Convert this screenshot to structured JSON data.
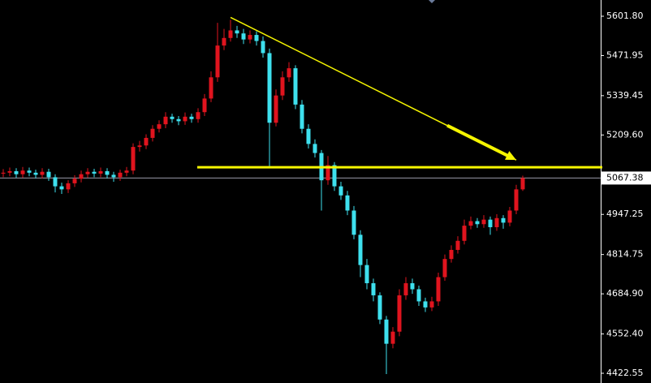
{
  "chart_data": {
    "type": "candlestick",
    "up_color": "#e0141e",
    "down_color": "#3ee0ee",
    "annotation_color": "#f5f500",
    "price_line_color": "#9a9aa8",
    "ylim": [
      4390.4,
      5655.4
    ],
    "yticks": [
      {
        "value": 5601.8,
        "label": "5601.80"
      },
      {
        "value": 5471.95,
        "label": "5471.95"
      },
      {
        "value": 5339.45,
        "label": "5339.45"
      },
      {
        "value": 5209.6,
        "label": "5209.60"
      },
      {
        "value": 4947.25,
        "label": "4947.25"
      },
      {
        "value": 4814.75,
        "label": "4814.75"
      },
      {
        "value": 4684.9,
        "label": "4684.90"
      },
      {
        "value": 4552.4,
        "label": "4552.40"
      },
      {
        "value": 4422.55,
        "label": "4422.55"
      }
    ],
    "current_price": 5067.38,
    "horizontal_line": 5103,
    "trendline": {
      "from": {
        "index": 35,
        "price": 5598
      },
      "to": {
        "index": 79,
        "price": 5127
      }
    },
    "open": [
      5082,
      5085,
      5090,
      5080,
      5092,
      5085,
      5078,
      5088,
      5070,
      5040,
      5030,
      5050,
      5065,
      5080,
      5088,
      5082,
      5090,
      5078,
      5070,
      5085,
      5092,
      5170,
      5175,
      5200,
      5230,
      5245,
      5270,
      5262,
      5255,
      5270,
      5262,
      5285,
      5330,
      5400,
      5505,
      5530,
      5555,
      5545,
      5525,
      5540,
      5520,
      5480,
      5250,
      5340,
      5400,
      5430,
      5310,
      5230,
      5180,
      5150,
      5060,
      5110,
      5040,
      5010,
      4960,
      4880,
      4780,
      4720,
      4680,
      4600,
      4520,
      4560,
      4680,
      4720,
      4700,
      4660,
      4640,
      4660,
      4740,
      4800,
      4830,
      4860,
      4910,
      4925,
      4915,
      4930,
      4905,
      4935,
      4920,
      4960,
      5030
    ],
    "high": [
      5097,
      5102,
      5100,
      5104,
      5102,
      5095,
      5100,
      5098,
      5080,
      5052,
      5060,
      5077,
      5092,
      5100,
      5098,
      5102,
      5100,
      5088,
      5095,
      5104,
      5182,
      5190,
      5212,
      5242,
      5258,
      5285,
      5280,
      5272,
      5284,
      5280,
      5298,
      5345,
      5420,
      5580,
      5560,
      5590,
      5570,
      5560,
      5555,
      5552,
      5535,
      5495,
      5360,
      5420,
      5450,
      5440,
      5325,
      5245,
      5195,
      5160,
      5140,
      5120,
      5055,
      5025,
      4975,
      4895,
      4800,
      4735,
      4690,
      4612,
      4575,
      4700,
      4740,
      4735,
      4712,
      4672,
      4675,
      4755,
      4815,
      4845,
      4875,
      4930,
      4940,
      4935,
      4945,
      4940,
      4948,
      4945,
      4972,
      5045,
      5075
    ],
    "low": [
      5070,
      5073,
      5068,
      5068,
      5073,
      5066,
      5066,
      5058,
      5020,
      5015,
      5018,
      5038,
      5053,
      5068,
      5070,
      5070,
      5066,
      5055,
      5058,
      5073,
      5080,
      5155,
      5163,
      5188,
      5218,
      5232,
      5250,
      5242,
      5243,
      5250,
      5250,
      5272,
      5318,
      5385,
      5490,
      5518,
      5530,
      5510,
      5512,
      5505,
      5465,
      5100,
      5238,
      5325,
      5385,
      5295,
      5215,
      5165,
      5135,
      4960,
      5045,
      5025,
      4995,
      4945,
      4865,
      4740,
      4700,
      4660,
      4585,
      4420,
      4505,
      4545,
      4665,
      4685,
      4645,
      4625,
      4628,
      4645,
      4728,
      4788,
      4818,
      4848,
      4898,
      4903,
      4903,
      4880,
      4893,
      4900,
      4908,
      4948,
      5025
    ],
    "close": [
      5085,
      5090,
      5080,
      5092,
      5085,
      5078,
      5088,
      5070,
      5040,
      5030,
      5050,
      5065,
      5080,
      5088,
      5082,
      5090,
      5078,
      5070,
      5085,
      5092,
      5170,
      5175,
      5200,
      5230,
      5245,
      5270,
      5262,
      5255,
      5270,
      5262,
      5285,
      5330,
      5400,
      5505,
      5530,
      5555,
      5545,
      5525,
      5540,
      5520,
      5480,
      5250,
      5340,
      5400,
      5430,
      5310,
      5230,
      5180,
      5150,
      5060,
      5110,
      5040,
      5010,
      4960,
      4880,
      4780,
      4720,
      4680,
      4600,
      4520,
      4560,
      4680,
      4720,
      4700,
      4660,
      4640,
      4660,
      4740,
      4800,
      4830,
      4860,
      4910,
      4925,
      4915,
      4930,
      4905,
      4935,
      4920,
      4960,
      5030,
      5067.38
    ]
  }
}
